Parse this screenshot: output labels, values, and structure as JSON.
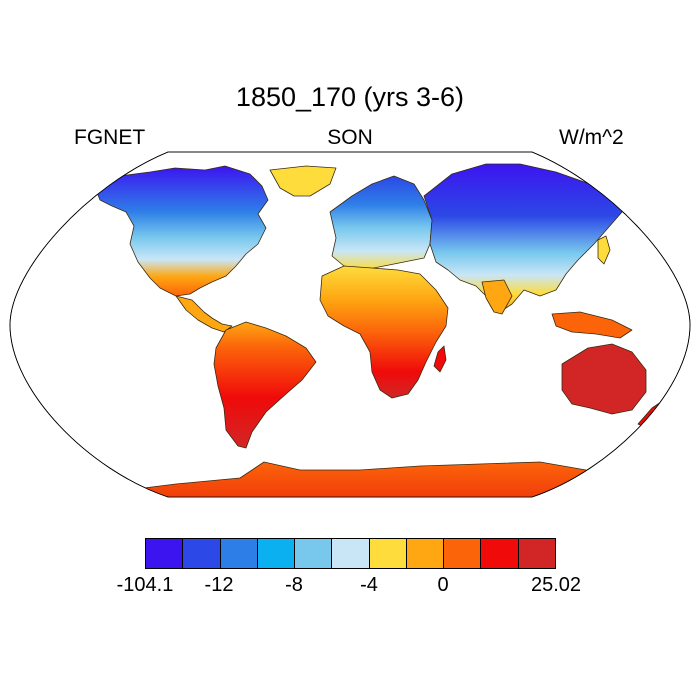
{
  "header": {
    "title": "1850_170 (yrs 3-6)",
    "left_label": "FGNET",
    "center_label": "SON",
    "right_label": "W/m^2"
  },
  "colorbar": {
    "colors": [
      "#3c14f0",
      "#2c48e6",
      "#2e7ee8",
      "#0ab0f0",
      "#78c8ee",
      "#c9e6f6",
      "#fedc3c",
      "#fea712",
      "#fc640a",
      "#f00a0a",
      "#d22626"
    ],
    "tick_labels": [
      "-104.1",
      "-12",
      "-8",
      "-4",
      "0",
      "25.02"
    ]
  },
  "map": {
    "projection": "Robinson",
    "field": "FGNET",
    "season": "SON"
  }
}
